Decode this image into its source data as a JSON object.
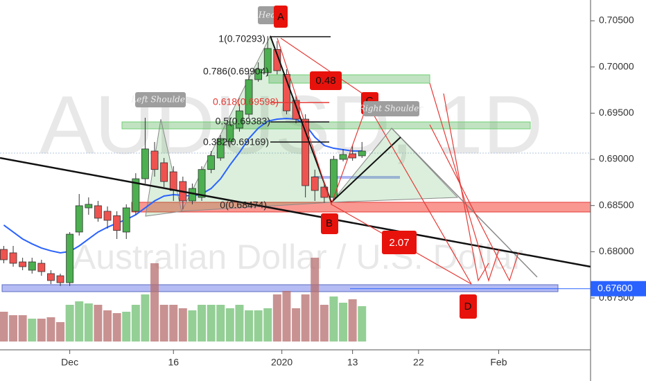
{
  "chart_data": {
    "type": "candlestick",
    "title": "AUDUSD, 1D",
    "subtitle": "Australian Dollar / U.S. Dollar",
    "categories": [
      null,
      null,
      null,
      null,
      null,
      null,
      null,
      null,
      null,
      null,
      null,
      null,
      null,
      null,
      null,
      null,
      null,
      null,
      null,
      null,
      null,
      null,
      null,
      null,
      null,
      null,
      null,
      null,
      null,
      null,
      null,
      null,
      null,
      null,
      null,
      null,
      null,
      null,
      null
    ],
    "open": [
      0.68025,
      0.67988,
      0.6789,
      0.678,
      0.67875,
      0.67763,
      0.6774,
      0.67665,
      0.68213,
      0.68475,
      0.68498,
      0.68438,
      0.6839,
      0.68213,
      0.68438,
      0.6879,
      0.6909,
      0.68963,
      0.68865,
      0.6876,
      0.6855,
      0.68588,
      0.6889,
      0.69015,
      0.6919,
      0.69338,
      0.69488,
      0.69863,
      0.69938,
      0.7019,
      0.6992,
      0.69638,
      0.69435,
      0.6881,
      0.687,
      0.68588,
      0.69,
      0.6906,
      0.69038
    ],
    "high": [
      0.68063,
      0.68063,
      0.67935,
      0.67935,
      0.67913,
      0.678,
      0.67763,
      0.68213,
      0.68625,
      0.68588,
      0.6855,
      0.6849,
      0.68438,
      0.68513,
      0.6885,
      0.6945,
      0.69188,
      0.69015,
      0.68925,
      0.68813,
      0.68738,
      0.68925,
      0.6909,
      0.69263,
      0.6945,
      0.696,
      0.69938,
      0.7005,
      0.70335,
      0.7028,
      0.69975,
      0.6969,
      0.69488,
      0.68888,
      0.68738,
      0.69038,
      0.69113,
      0.6915,
      0.69188
    ],
    "low": [
      0.67875,
      0.67838,
      0.678,
      0.67763,
      0.6774,
      0.6765,
      0.6763,
      0.6763,
      0.68175,
      0.684,
      0.68325,
      0.6825,
      0.68138,
      0.68138,
      0.684,
      0.68738,
      0.68813,
      0.687,
      0.6855,
      0.6846,
      0.68513,
      0.6855,
      0.6885,
      0.68985,
      0.6915,
      0.693,
      0.6945,
      0.6984,
      0.699,
      0.6992,
      0.69488,
      0.6939,
      0.68588,
      0.6855,
      0.6853,
      0.6855,
      0.68978,
      0.68985,
      0.69015
    ],
    "close": [
      0.67913,
      0.67875,
      0.67838,
      0.6789,
      0.67785,
      0.67688,
      0.67665,
      0.6819,
      0.68498,
      0.68513,
      0.68363,
      0.6834,
      0.6823,
      0.68475,
      0.6879,
      0.69113,
      0.6889,
      0.6876,
      0.68663,
      0.6855,
      0.68685,
      0.6889,
      0.6904,
      0.69225,
      0.69375,
      0.69525,
      0.69863,
      0.69975,
      0.702,
      0.6996,
      0.69525,
      0.69435,
      0.68715,
      0.68663,
      0.68588,
      0.69,
      0.69053,
      0.69015,
      0.6909
    ],
    "up_color": "#4caf50",
    "down_color": "#ef5350",
    "moving_average": {
      "color": "#2962ff",
      "values": [
        0.68288,
        0.68213,
        0.68138,
        0.68085,
        0.6804,
        0.6801,
        0.67988,
        0.68003,
        0.68063,
        0.68138,
        0.68213,
        0.68265,
        0.6831,
        0.68348,
        0.684,
        0.68475,
        0.6855,
        0.68603,
        0.68618,
        0.6861,
        0.68603,
        0.68625,
        0.68685,
        0.6879,
        0.6894,
        0.69075,
        0.69225,
        0.69338,
        0.69413,
        0.69435,
        0.69443,
        0.69435,
        0.69375,
        0.6924,
        0.6915,
        0.6912,
        0.69105,
        0.6909,
        0.6909
      ]
    },
    "volume": {
      "values": [
        43,
        38,
        38,
        33,
        33,
        35,
        28,
        53,
        58,
        55,
        53,
        45,
        41,
        43,
        53,
        68,
        113,
        53,
        53,
        48,
        45,
        53,
        53,
        53,
        48,
        53,
        45,
        45,
        48,
        68,
        73,
        48,
        68,
        121,
        53,
        65,
        56,
        61,
        51
      ],
      "ylim": [
        0,
        130
      ],
      "up_color": "rgba(76,175,80,0.6)",
      "down_color": "rgba(183,110,110,0.75)"
    },
    "ylim": [
      0.66938,
      0.70725
    ],
    "yticks": [
      {
        "value": 0.705,
        "label": "0.70500"
      },
      {
        "value": 0.7,
        "label": "0.70000"
      },
      {
        "value": 0.695,
        "label": "0.69500"
      },
      {
        "value": 0.69,
        "label": "0.69000"
      },
      {
        "value": 0.685,
        "label": "0.68500"
      },
      {
        "value": 0.68,
        "label": "0.68000"
      },
      {
        "value": 0.675,
        "label": "0.67500"
      }
    ],
    "xlim": [
      -0.4,
      62.1
    ],
    "xticks": [
      {
        "value": 7,
        "label": "Dec"
      },
      {
        "value": 18,
        "label": "16"
      },
      {
        "value": 29.5,
        "label": "2020"
      },
      {
        "value": 37,
        "label": "13"
      },
      {
        "value": 44,
        "label": "22"
      },
      {
        "value": 52.5,
        "label": "Feb"
      }
    ],
    "last_price": {
      "value": 0.676,
      "label": "0.67600",
      "color": "#2962ff"
    },
    "annotations": {
      "head": "Head",
      "a": "A",
      "b": "B",
      "c": "C",
      "d": "D",
      "left_shoulder": "Left Shoulder",
      "right_shoulder": "Right Shoulder",
      "ratio_ab": "0.48",
      "ratio_cd": "2.07"
    },
    "fib_labels": [
      "1(0.70293)",
      "0.786(0.69904)",
      "0.618(0.69598)",
      "0.5(0.69383)",
      "0.382(0.69169)",
      "0(0.68474)"
    ]
  }
}
